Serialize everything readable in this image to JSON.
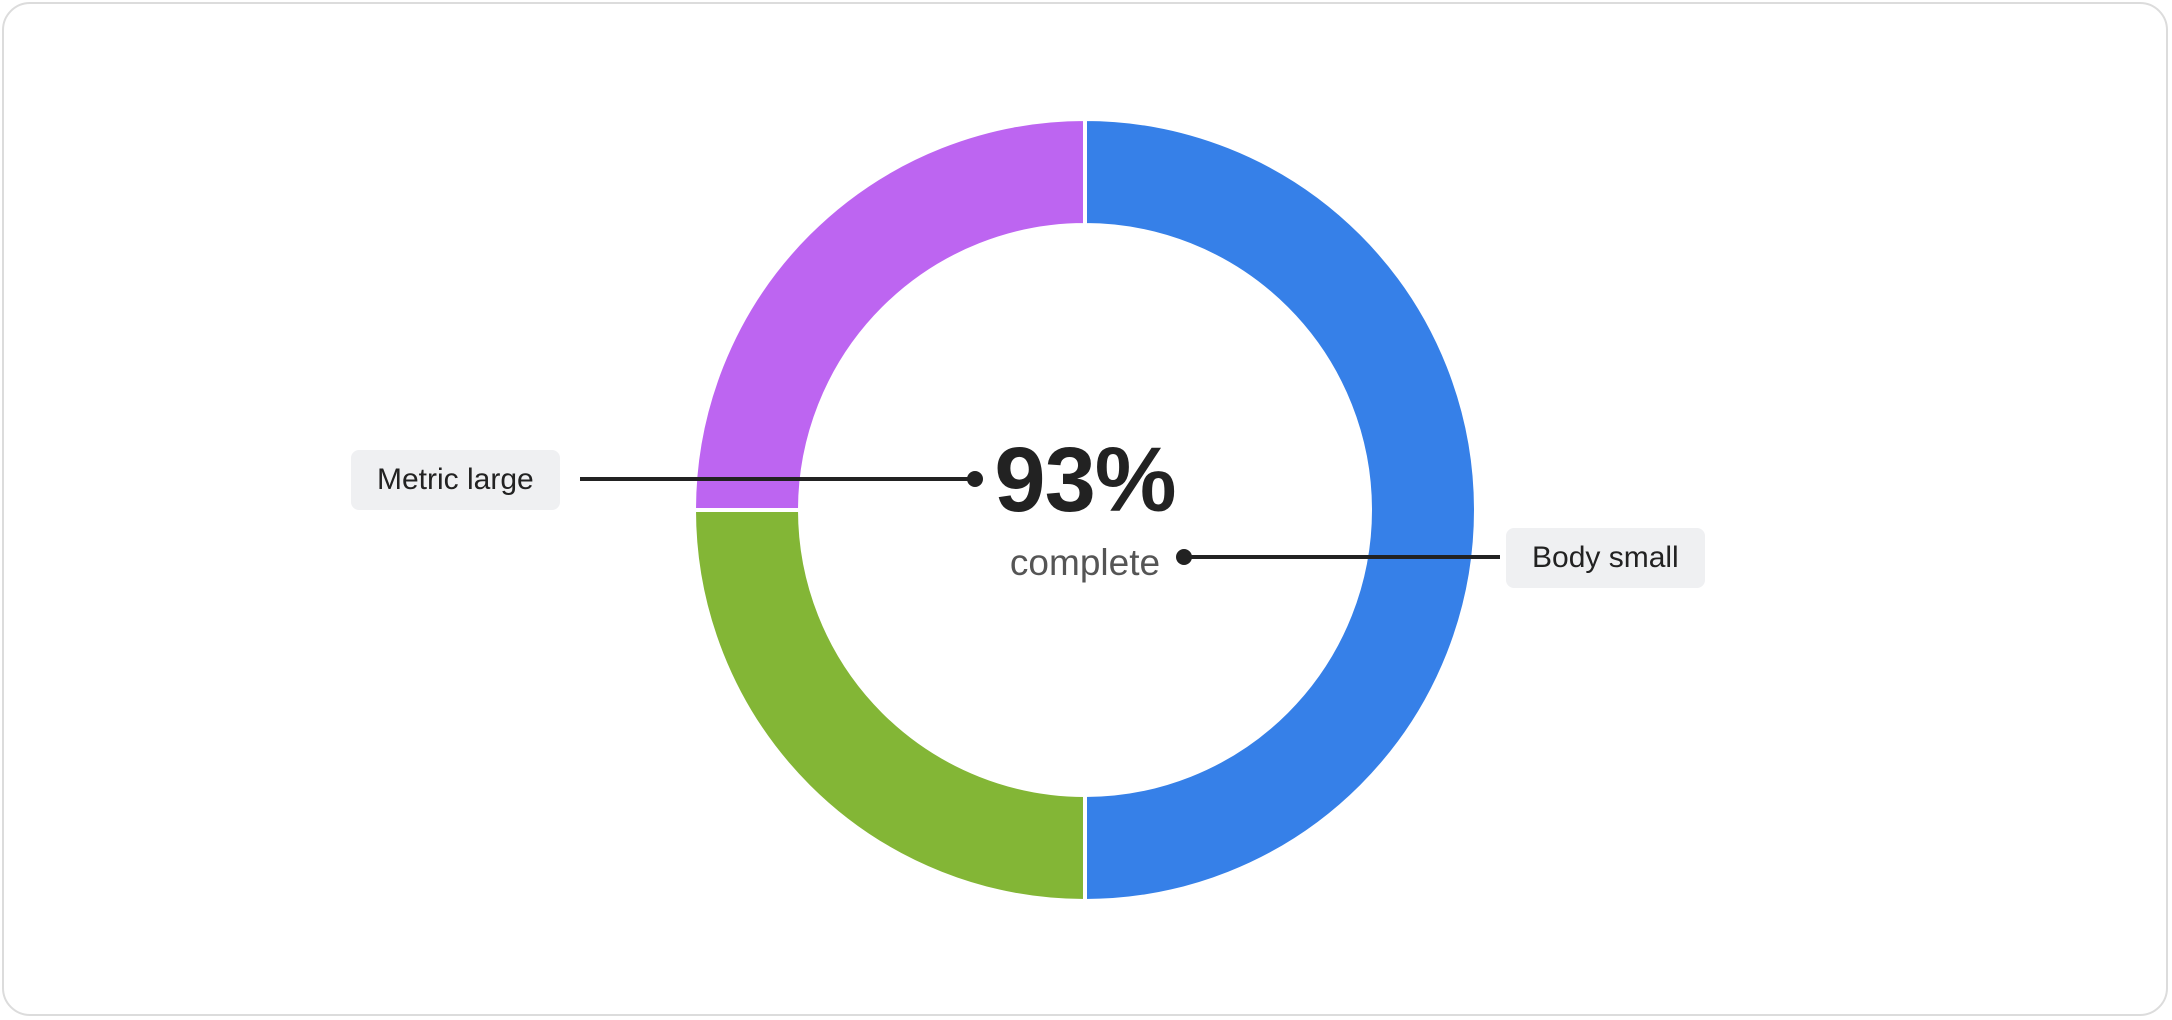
{
  "chart_data": {
    "type": "pie",
    "variant": "donut",
    "title": "",
    "slices": [
      {
        "value": 50,
        "color": "#3680e8"
      },
      {
        "value": 25,
        "color": "#83b636"
      },
      {
        "value": 25,
        "color": "#bd65f1"
      }
    ],
    "center_metric": "93%",
    "center_label": "complete"
  },
  "callouts": {
    "metric_label": "Metric large",
    "body_label": "Body small"
  },
  "colors": {
    "text_primary": "#222222",
    "text_secondary": "#555555",
    "callout_bg": "#eff0f2",
    "leader_line": "#222222"
  }
}
